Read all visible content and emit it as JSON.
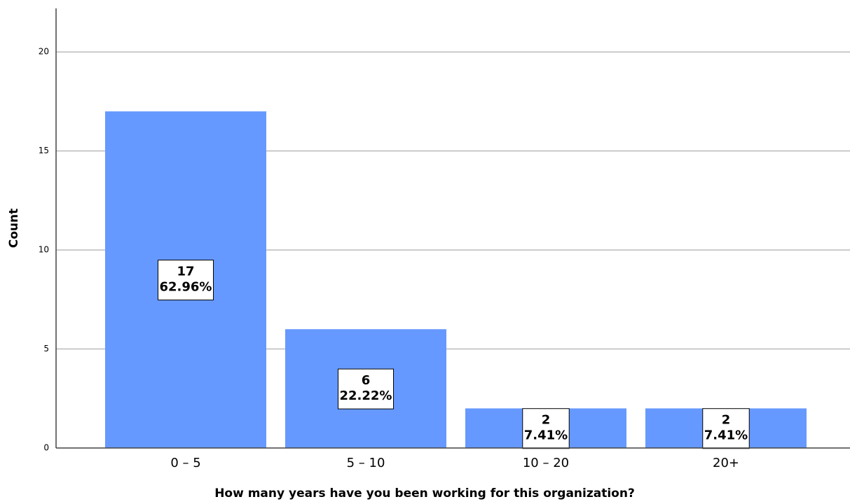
{
  "chart_data": {
    "type": "bar",
    "x_label": "How many years have you been working for this organization?",
    "y_label": "Count",
    "categories": [
      "0 – 5",
      "5 – 10",
      "10 – 20",
      "20+"
    ],
    "values": [
      17,
      6,
      2,
      2
    ],
    "percents": [
      62.96,
      22.22,
      7.41,
      7.41
    ],
    "percent_labels": [
      "62.96%",
      "22.22%",
      "7.41%",
      "7.41%"
    ],
    "color": "#6699ff",
    "ylim": [
      0,
      22.2
    ],
    "yticks": [
      0,
      5,
      10,
      15,
      20
    ],
    "grid": true
  }
}
